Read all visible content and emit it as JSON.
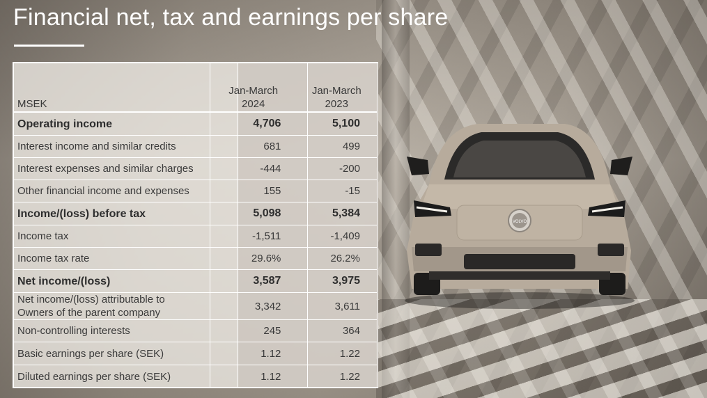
{
  "page": {
    "title": "Financial net, tax and earnings per share"
  },
  "table": {
    "unit_label": "MSEK",
    "col1_line1": "Jan-March",
    "col1_line2": "2024",
    "col2_line1": "Jan-March",
    "col2_line2": "2023",
    "rows": [
      {
        "label": "Operating income",
        "v2024": "4,706",
        "v2023": "5,100",
        "bold": true
      },
      {
        "label": "Interest income and similar credits",
        "v2024": "681",
        "v2023": "499",
        "bold": false
      },
      {
        "label": "Interest expenses and similar charges",
        "v2024": "-444",
        "v2023": "-200",
        "bold": false
      },
      {
        "label": "Other financial income and expenses",
        "v2024": "155",
        "v2023": "-15",
        "bold": false
      },
      {
        "label": "Income/(loss) before tax",
        "v2024": "5,098",
        "v2023": "5,384",
        "bold": true
      },
      {
        "label": "Income tax",
        "v2024": "-1,511",
        "v2023": "-1,409",
        "bold": false
      },
      {
        "label": "Income tax rate",
        "v2024": "29.6%",
        "v2023": "26.2%",
        "bold": false
      },
      {
        "label": "Net income/(loss)",
        "v2024": "3,587",
        "v2023": "3,975",
        "bold": true
      },
      {
        "label_line1": "Net income/(loss) attributable to",
        "label_line2": "Owners of the parent company",
        "v2024": "3,342",
        "v2023": "3,611",
        "bold": false
      },
      {
        "label": "Non-controlling interests",
        "v2024": "245",
        "v2023": "364",
        "bold": false
      },
      {
        "label": "Basic earnings per share (SEK)",
        "v2024": "1.12",
        "v2023": "1.22",
        "bold": false
      },
      {
        "label": "Diluted earnings per share (SEK)",
        "v2024": "1.12",
        "v2023": "1.22",
        "bold": false
      }
    ]
  },
  "image": {
    "car_badge": "VOLVO"
  }
}
